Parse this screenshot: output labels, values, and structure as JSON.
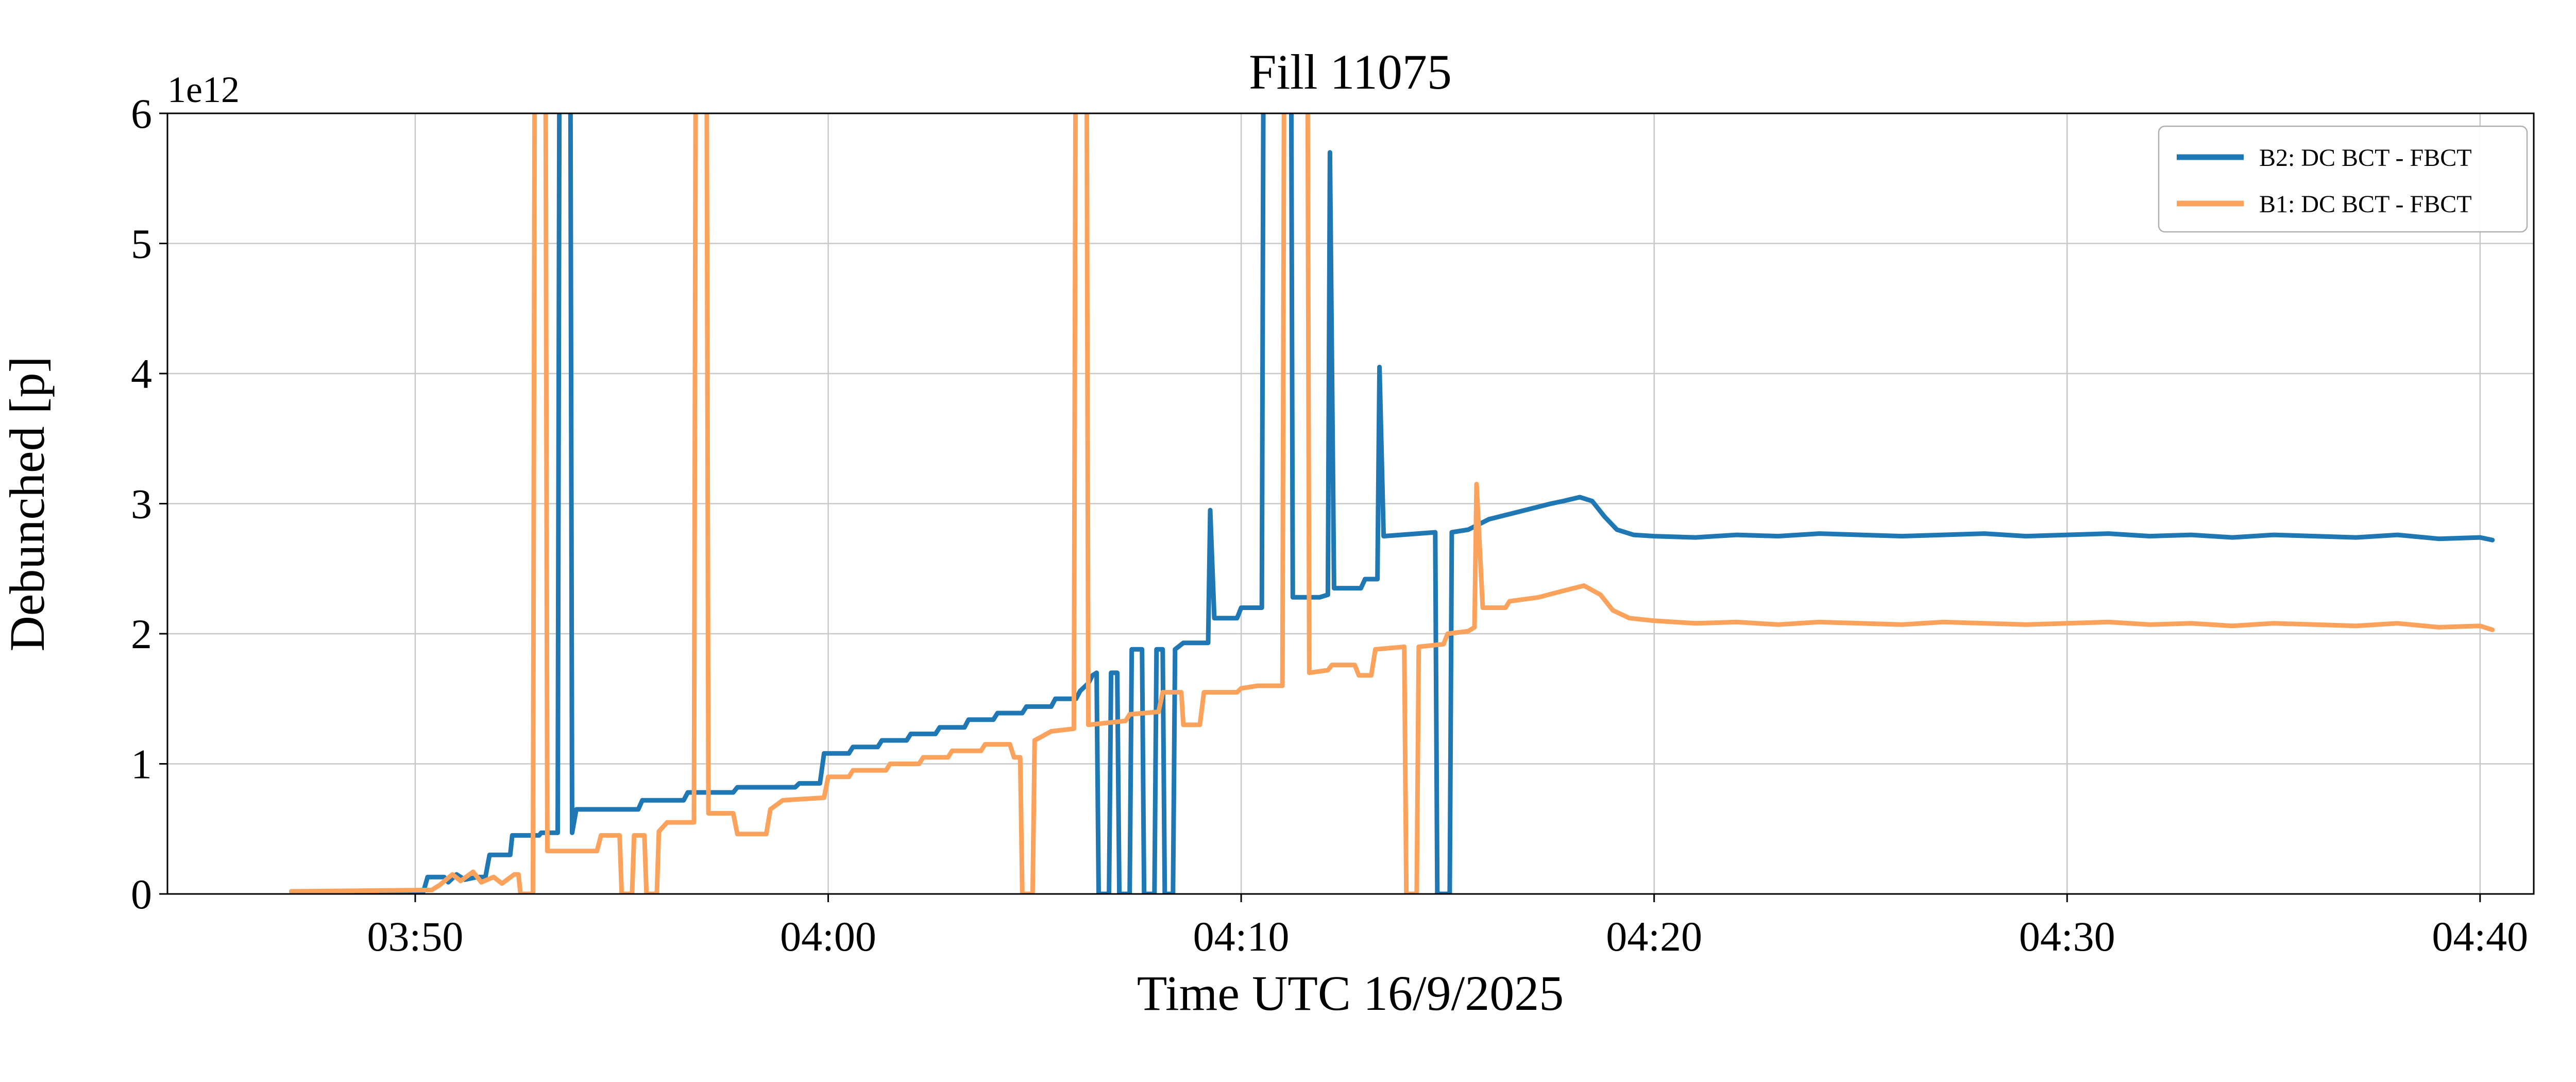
{
  "chart_data": {
    "type": "line",
    "title": "Fill 11075",
    "xlabel": "Time UTC 16/9/2025",
    "ylabel": "Debunched [p]",
    "offset_text": "1e12",
    "x_unit": "minutes after 00:00 UTC",
    "xlim": [
      224.0,
      281.3
    ],
    "ylim": [
      0,
      6
    ],
    "grid": true,
    "legend_position": "upper right",
    "x_ticks": [
      {
        "t": 230,
        "label": "03:50"
      },
      {
        "t": 240,
        "label": "04:00"
      },
      {
        "t": 250,
        "label": "04:10"
      },
      {
        "t": 260,
        "label": "04:20"
      },
      {
        "t": 270,
        "label": "04:30"
      },
      {
        "t": 280,
        "label": "04:40"
      }
    ],
    "y_ticks": [
      {
        "v": 0,
        "label": "0"
      },
      {
        "v": 1,
        "label": "1"
      },
      {
        "v": 2,
        "label": "2"
      },
      {
        "v": 3,
        "label": "3"
      },
      {
        "v": 4,
        "label": "4"
      },
      {
        "v": 5,
        "label": "5"
      },
      {
        "v": 6,
        "label": "6"
      }
    ],
    "series": [
      {
        "name": "B2: DC BCT - FBCT",
        "color": "#1f77b4",
        "points": [
          [
            227.0,
            0.02
          ],
          [
            229.0,
            0.02
          ],
          [
            230.2,
            0.02
          ],
          [
            230.3,
            0.13
          ],
          [
            230.7,
            0.13
          ],
          [
            230.8,
            0.09
          ],
          [
            231.0,
            0.15
          ],
          [
            231.2,
            0.11
          ],
          [
            231.5,
            0.13
          ],
          [
            231.7,
            0.13
          ],
          [
            231.8,
            0.3
          ],
          [
            232.3,
            0.3
          ],
          [
            232.35,
            0.45
          ],
          [
            233.0,
            0.45
          ],
          [
            233.05,
            0.47
          ],
          [
            233.45,
            0.47
          ],
          [
            233.5,
            7.5
          ],
          [
            233.75,
            7.5
          ],
          [
            233.8,
            0.47
          ],
          [
            233.9,
            0.65
          ],
          [
            235.4,
            0.65
          ],
          [
            235.5,
            0.72
          ],
          [
            236.5,
            0.72
          ],
          [
            236.6,
            0.78
          ],
          [
            237.7,
            0.78
          ],
          [
            237.8,
            0.82
          ],
          [
            239.2,
            0.82
          ],
          [
            239.3,
            0.85
          ],
          [
            239.8,
            0.85
          ],
          [
            239.9,
            1.08
          ],
          [
            240.5,
            1.08
          ],
          [
            240.6,
            1.13
          ],
          [
            241.2,
            1.13
          ],
          [
            241.3,
            1.18
          ],
          [
            241.9,
            1.18
          ],
          [
            242.0,
            1.23
          ],
          [
            242.6,
            1.23
          ],
          [
            242.7,
            1.28
          ],
          [
            243.3,
            1.28
          ],
          [
            243.4,
            1.34
          ],
          [
            244.0,
            1.34
          ],
          [
            244.1,
            1.39
          ],
          [
            244.7,
            1.39
          ],
          [
            244.8,
            1.44
          ],
          [
            245.4,
            1.44
          ],
          [
            245.5,
            1.5
          ],
          [
            246.0,
            1.5
          ],
          [
            246.1,
            1.56
          ],
          [
            246.3,
            1.62
          ],
          [
            246.4,
            1.68
          ],
          [
            246.5,
            1.7
          ],
          [
            246.55,
            0.0
          ],
          [
            246.8,
            0.0
          ],
          [
            246.85,
            1.7
          ],
          [
            247.0,
            1.7
          ],
          [
            247.05,
            0.0
          ],
          [
            247.3,
            0.0
          ],
          [
            247.35,
            1.88
          ],
          [
            247.6,
            1.88
          ],
          [
            247.65,
            0.0
          ],
          [
            247.9,
            0.0
          ],
          [
            247.95,
            1.88
          ],
          [
            248.1,
            1.88
          ],
          [
            248.15,
            0.0
          ],
          [
            248.35,
            0.0
          ],
          [
            248.4,
            1.88
          ],
          [
            248.6,
            1.93
          ],
          [
            249.2,
            1.93
          ],
          [
            249.25,
            2.95
          ],
          [
            249.35,
            2.12
          ],
          [
            249.9,
            2.12
          ],
          [
            250.0,
            2.2
          ],
          [
            250.5,
            2.2
          ],
          [
            250.55,
            7.5
          ],
          [
            251.2,
            7.5
          ],
          [
            251.25,
            2.28
          ],
          [
            251.9,
            2.28
          ],
          [
            252.1,
            2.3
          ],
          [
            252.15,
            5.7
          ],
          [
            252.25,
            2.35
          ],
          [
            252.9,
            2.35
          ],
          [
            253.0,
            2.42
          ],
          [
            253.3,
            2.42
          ],
          [
            253.35,
            4.05
          ],
          [
            253.45,
            2.75
          ],
          [
            254.7,
            2.78
          ],
          [
            254.75,
            0.0
          ],
          [
            255.05,
            0.0
          ],
          [
            255.1,
            2.78
          ],
          [
            255.5,
            2.8
          ],
          [
            256.0,
            2.88
          ],
          [
            256.5,
            2.92
          ],
          [
            257.0,
            2.96
          ],
          [
            257.5,
            3.0
          ],
          [
            257.8,
            3.02
          ],
          [
            258.2,
            3.05
          ],
          [
            258.5,
            3.02
          ],
          [
            258.8,
            2.9
          ],
          [
            259.1,
            2.8
          ],
          [
            259.5,
            2.76
          ],
          [
            260.0,
            2.75
          ],
          [
            261,
            2.74
          ],
          [
            262,
            2.76
          ],
          [
            263,
            2.75
          ],
          [
            264,
            2.77
          ],
          [
            265,
            2.76
          ],
          [
            266,
            2.75
          ],
          [
            267,
            2.76
          ],
          [
            268,
            2.77
          ],
          [
            269,
            2.75
          ],
          [
            270,
            2.76
          ],
          [
            271,
            2.77
          ],
          [
            272,
            2.75
          ],
          [
            273,
            2.76
          ],
          [
            274,
            2.74
          ],
          [
            275,
            2.76
          ],
          [
            276,
            2.75
          ],
          [
            277,
            2.74
          ],
          [
            278,
            2.76
          ],
          [
            279,
            2.73
          ],
          [
            280.0,
            2.74
          ],
          [
            280.3,
            2.72
          ]
        ]
      },
      {
        "name": "B1: DC BCT - FBCT",
        "color": "#fba35c",
        "points": [
          [
            227.0,
            0.02
          ],
          [
            230.4,
            0.03
          ],
          [
            230.6,
            0.07
          ],
          [
            230.9,
            0.15
          ],
          [
            231.1,
            0.1
          ],
          [
            231.4,
            0.17
          ],
          [
            231.6,
            0.09
          ],
          [
            231.9,
            0.13
          ],
          [
            232.1,
            0.08
          ],
          [
            232.4,
            0.15
          ],
          [
            232.5,
            0.15
          ],
          [
            232.55,
            0.0
          ],
          [
            232.85,
            0.0
          ],
          [
            232.9,
            7.5
          ],
          [
            233.15,
            7.5
          ],
          [
            233.2,
            0.33
          ],
          [
            234.4,
            0.33
          ],
          [
            234.5,
            0.45
          ],
          [
            234.95,
            0.45
          ],
          [
            235.0,
            0.0
          ],
          [
            235.25,
            0.0
          ],
          [
            235.3,
            0.45
          ],
          [
            235.55,
            0.45
          ],
          [
            235.6,
            0.0
          ],
          [
            235.85,
            0.0
          ],
          [
            235.9,
            0.48
          ],
          [
            236.1,
            0.55
          ],
          [
            236.75,
            0.55
          ],
          [
            236.8,
            7.5
          ],
          [
            237.05,
            7.5
          ],
          [
            237.1,
            0.62
          ],
          [
            237.7,
            0.62
          ],
          [
            237.8,
            0.46
          ],
          [
            238.5,
            0.46
          ],
          [
            238.6,
            0.65
          ],
          [
            238.9,
            0.72
          ],
          [
            239.9,
            0.74
          ],
          [
            240.0,
            0.9
          ],
          [
            240.5,
            0.9
          ],
          [
            240.6,
            0.95
          ],
          [
            241.4,
            0.95
          ],
          [
            241.5,
            1.0
          ],
          [
            242.2,
            1.0
          ],
          [
            242.3,
            1.05
          ],
          [
            242.9,
            1.05
          ],
          [
            243.0,
            1.1
          ],
          [
            243.7,
            1.1
          ],
          [
            243.8,
            1.15
          ],
          [
            244.4,
            1.15
          ],
          [
            244.5,
            1.05
          ],
          [
            244.65,
            1.05
          ],
          [
            244.7,
            0.0
          ],
          [
            244.95,
            0.0
          ],
          [
            245.0,
            1.18
          ],
          [
            245.4,
            1.25
          ],
          [
            245.95,
            1.27
          ],
          [
            246.0,
            7.5
          ],
          [
            246.25,
            7.5
          ],
          [
            246.3,
            1.3
          ],
          [
            247.2,
            1.33
          ],
          [
            247.3,
            1.38
          ],
          [
            248.0,
            1.4
          ],
          [
            248.1,
            1.55
          ],
          [
            248.55,
            1.55
          ],
          [
            248.6,
            1.3
          ],
          [
            249.0,
            1.3
          ],
          [
            249.1,
            1.55
          ],
          [
            249.9,
            1.55
          ],
          [
            250.0,
            1.58
          ],
          [
            250.4,
            1.6
          ],
          [
            251.0,
            1.6
          ],
          [
            251.05,
            7.5
          ],
          [
            251.6,
            7.5
          ],
          [
            251.65,
            1.7
          ],
          [
            252.1,
            1.72
          ],
          [
            252.2,
            1.76
          ],
          [
            252.75,
            1.76
          ],
          [
            252.85,
            1.68
          ],
          [
            253.15,
            1.68
          ],
          [
            253.25,
            1.88
          ],
          [
            253.95,
            1.9
          ],
          [
            254.0,
            0.0
          ],
          [
            254.25,
            0.0
          ],
          [
            254.3,
            1.9
          ],
          [
            254.9,
            1.92
          ],
          [
            255.0,
            2.0
          ],
          [
            255.5,
            2.02
          ],
          [
            255.65,
            2.05
          ],
          [
            255.7,
            3.15
          ],
          [
            255.85,
            2.2
          ],
          [
            256.4,
            2.2
          ],
          [
            256.5,
            2.25
          ],
          [
            257.2,
            2.28
          ],
          [
            257.8,
            2.33
          ],
          [
            258.3,
            2.37
          ],
          [
            258.7,
            2.3
          ],
          [
            259.0,
            2.18
          ],
          [
            259.4,
            2.12
          ],
          [
            260.0,
            2.1
          ],
          [
            261,
            2.08
          ],
          [
            262,
            2.09
          ],
          [
            263,
            2.07
          ],
          [
            264,
            2.09
          ],
          [
            265,
            2.08
          ],
          [
            266,
            2.07
          ],
          [
            267,
            2.09
          ],
          [
            268,
            2.08
          ],
          [
            269,
            2.07
          ],
          [
            270,
            2.08
          ],
          [
            271,
            2.09
          ],
          [
            272,
            2.07
          ],
          [
            273,
            2.08
          ],
          [
            274,
            2.06
          ],
          [
            275,
            2.08
          ],
          [
            276,
            2.07
          ],
          [
            277,
            2.06
          ],
          [
            278,
            2.08
          ],
          [
            279,
            2.05
          ],
          [
            280.0,
            2.06
          ],
          [
            280.3,
            2.03
          ]
        ]
      }
    ],
    "legend": {
      "entries": [
        {
          "label": "B2: DC BCT - FBCT",
          "color": "#1f77b4"
        },
        {
          "label": "B1: DC BCT - FBCT",
          "color": "#fba35c"
        }
      ]
    },
    "style": {
      "grid_color": "#c8c8c8",
      "spine_color": "#000000",
      "line_width": 9
    }
  }
}
